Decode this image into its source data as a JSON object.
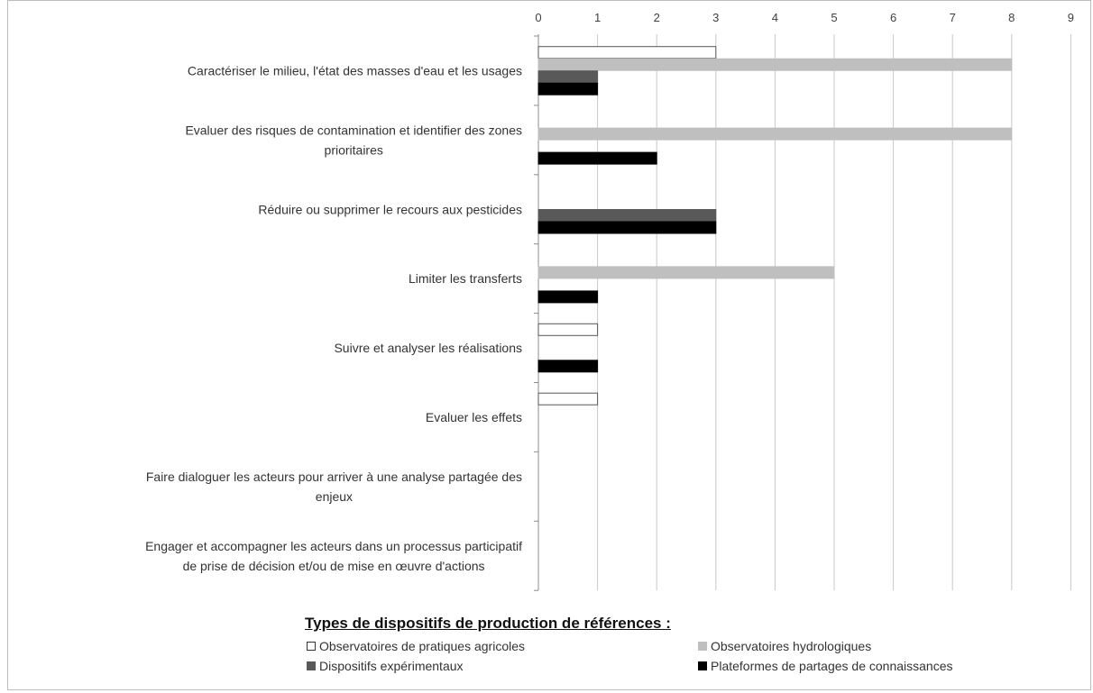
{
  "chart_data": {
    "type": "bar",
    "orientation": "horizontal",
    "x_ticks": [
      "0",
      "1",
      "2",
      "3",
      "4",
      "5",
      "6",
      "7",
      "8",
      "9"
    ],
    "xlim": [
      0,
      9
    ],
    "grid": true,
    "categories": [
      [
        "Caractériser le milieu, l'état des masses d'eau et les usages"
      ],
      [
        "Evaluer des risques de contamination et identifier des zones",
        "prioritaires"
      ],
      [
        "Réduire ou supprimer le recours aux pesticides"
      ],
      [
        "Limiter les transferts"
      ],
      [
        "Suivre et analyser les réalisations"
      ],
      [
        "Evaluer les effets"
      ],
      [
        "Faire dialoguer les acteurs pour arriver à une analyse partagée des",
        "enjeux"
      ],
      [
        "Engager et accompagner les acteurs dans un processus participatif",
        "de prise de décision et/ou de mise en œuvre d'actions"
      ]
    ],
    "series": [
      {
        "name": "Observatoires de pratiques agricoles",
        "color": "#ffffff",
        "stroke": "#555555",
        "values": [
          3,
          0,
          0,
          0,
          1,
          1,
          0,
          0
        ]
      },
      {
        "name": "Observatoires hydrologiques",
        "color": "#bfbfbf",
        "stroke": "#bfbfbf",
        "values": [
          8,
          8,
          0,
          5,
          0,
          0,
          0,
          0
        ]
      },
      {
        "name": "Dispositifs expérimentaux",
        "color": "#595959",
        "stroke": "#595959",
        "values": [
          1,
          0,
          3,
          0,
          0,
          0,
          0,
          0
        ]
      },
      {
        "name": "Plateformes de partages de connaissances",
        "color": "#000000",
        "stroke": "#000000",
        "values": [
          1,
          2,
          3,
          1,
          1,
          0,
          0,
          0
        ]
      }
    ],
    "legend_title": "Types de dispositifs de production de références :",
    "legend_position": "bottom"
  }
}
